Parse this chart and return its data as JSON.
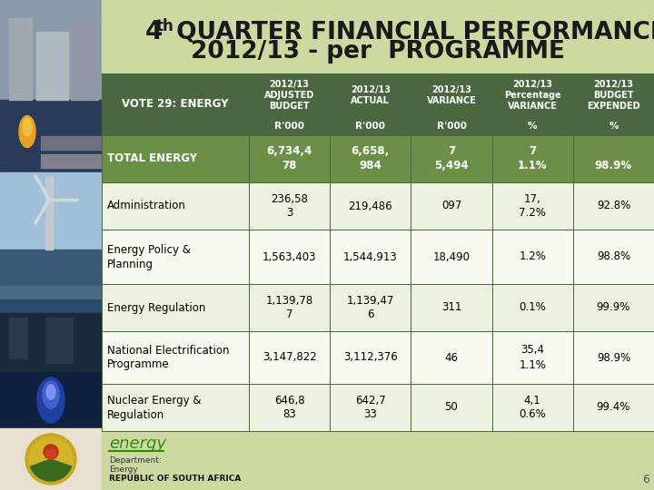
{
  "title_bg": "#ccd9a0",
  "header_bg": "#4a6741",
  "header_text_color": "#ffffff",
  "total_row_bg": "#6b8f47",
  "alt_row_bg": "#eef2e0",
  "white_row_bg": "#f8faf0",
  "border_color": "#4a6741",
  "col_headers_row1": [
    "2012/13\nADJUSTED\nBUDGET",
    "2012/13\nACTUAL",
    "2012/13\nVARIANCE",
    "2012/13\nPercentage\nVARIANCE",
    "2012/13\nBUDGET\nEXPENDED"
  ],
  "col_headers_row2": [
    "R'000",
    "R'000",
    "R'000",
    "%",
    "%"
  ],
  "row_header": "VOTE 29: ENERGY",
  "rows": [
    {
      "label": "TOTAL ENERGY",
      "label_bold": true,
      "line1": [
        "6,734,4",
        "6,658,",
        "7",
        "7",
        ""
      ],
      "line2": [
        "78",
        "984",
        "5,494",
        "1.1%",
        "98.9%"
      ],
      "bg": "#6b8f47",
      "text_color": "#ffffff",
      "bold": true
    },
    {
      "label": "Administration",
      "label_bold": false,
      "line1": [
        "236,58",
        "219,486",
        "097",
        "17,",
        "92.8%"
      ],
      "line2": [
        "3",
        "",
        "",
        "7.2%",
        ""
      ],
      "bg": "#eef2e0",
      "text_color": "#000000",
      "bold": false
    },
    {
      "label": "Energy Policy &\nPlanning",
      "label_bold": false,
      "line1": [
        "1,563,403",
        "1,544,913",
        "18,490",
        "1.2%",
        "98.8%"
      ],
      "line2": [
        "",
        "",
        "",
        "",
        ""
      ],
      "bg": "#f8faf0",
      "text_color": "#000000",
      "bold": false
    },
    {
      "label": "Energy Regulation",
      "label_bold": false,
      "line1": [
        "1,139,78",
        "1,139,47",
        "311",
        "0.1%",
        "99.9%"
      ],
      "line2": [
        "7",
        "6",
        "",
        "",
        ""
      ],
      "bg": "#eef2e0",
      "text_color": "#000000",
      "bold": false
    },
    {
      "label": "National Electrification\nProgramme",
      "label_bold": false,
      "line1": [
        "3,147,822",
        "3,112,376",
        "46",
        "35,4",
        "98.9%"
      ],
      "line2": [
        "",
        "",
        "",
        "1.1%",
        ""
      ],
      "bg": "#f8faf0",
      "text_color": "#000000",
      "bold": false
    },
    {
      "label": "Nuclear Energy &\nRegulation",
      "label_bold": false,
      "line1": [
        "646,8",
        "642,7",
        "50",
        "4,1",
        "99.4%"
      ],
      "line2": [
        "83",
        "33",
        "",
        "0.6%",
        ""
      ],
      "bg": "#eef2e0",
      "text_color": "#000000",
      "bold": false
    }
  ],
  "page_num": "6",
  "left_strip_colors": [
    "#5a7a8a",
    "#4a6a7a",
    "#8a7a5a",
    "#6a8a6a",
    "#2a4a6a",
    "#1a3a5a",
    "#4a2a1a",
    "#2a1a0a"
  ],
  "footer_energy_color": "#3a8a10",
  "footer_dept_color": "#333333"
}
